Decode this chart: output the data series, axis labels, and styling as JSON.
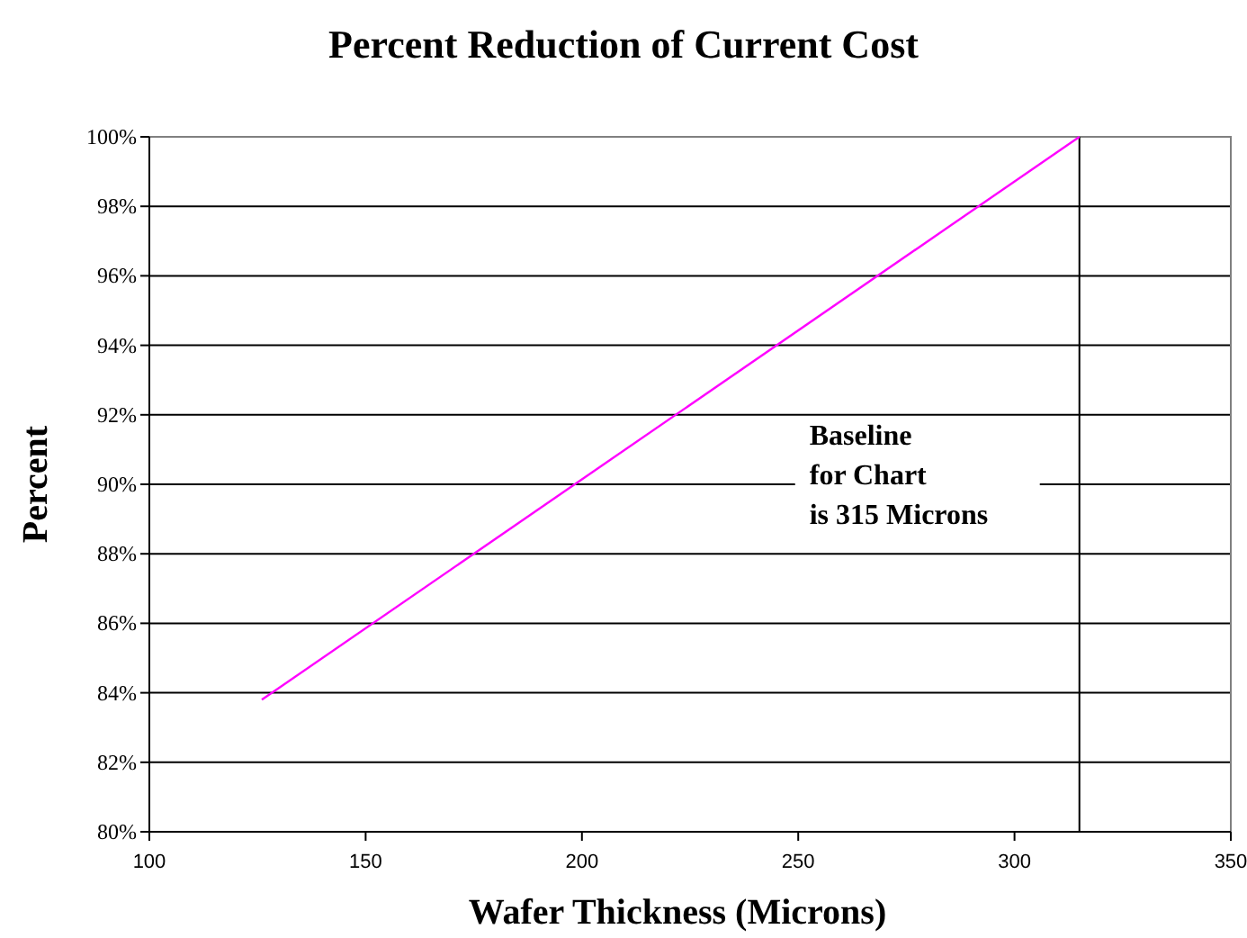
{
  "chart_data": {
    "type": "line",
    "title": "Percent Reduction of Current Cost",
    "xlabel": "Wafer Thickness (Microns)",
    "ylabel": "Percent",
    "series": [
      {
        "color": "#ff00ff",
        "x": [
          126,
          315
        ],
        "values": [
          83.8,
          100
        ]
      }
    ],
    "xlim": [
      100,
      350
    ],
    "xticks": [
      100,
      150,
      200,
      250,
      300,
      350
    ],
    "ylim": [
      80,
      100
    ],
    "yticks": [
      {
        "value": 80,
        "label": "80%"
      },
      {
        "value": 82,
        "label": "82%"
      },
      {
        "value": 84,
        "label": "84%"
      },
      {
        "value": 86,
        "label": "86%"
      },
      {
        "value": 88,
        "label": "88%"
      },
      {
        "value": 90,
        "label": "90%"
      },
      {
        "value": 92,
        "label": "92%"
      },
      {
        "value": 94,
        "label": "94%"
      },
      {
        "value": 96,
        "label": "96%"
      },
      {
        "value": 98,
        "label": "98%"
      },
      {
        "value": 100,
        "label": "100%"
      }
    ],
    "grid": "y",
    "marker": "none",
    "line_style": "solid",
    "ref_lines": [
      {
        "axis": "x",
        "value": 315,
        "label": "Baseline\nfor Chart\nis 315 Microns",
        "color": "#000000"
      }
    ]
  }
}
